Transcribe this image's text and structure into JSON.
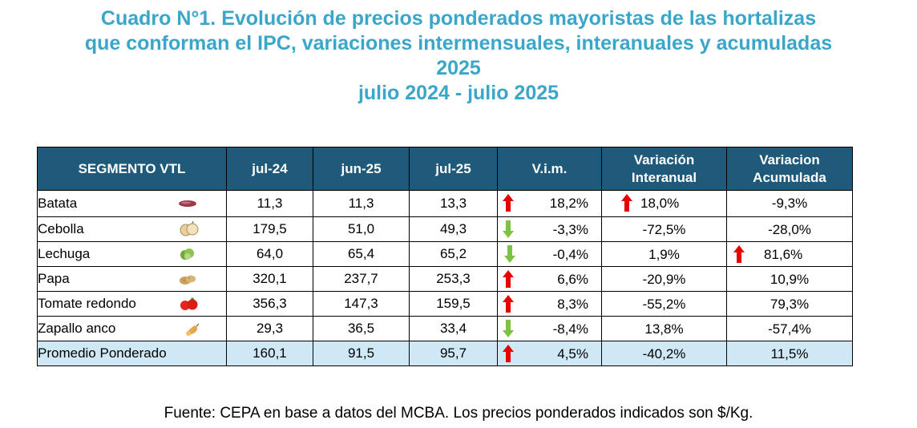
{
  "title": {
    "line1": "Cuadro N°1. Evolución de precios ponderados mayoristas de las hortalizas",
    "line2": "que conforman el IPC, variaciones intermensuales, interanuales y acumuladas",
    "line3": "2025",
    "line4": "julio 2024 - julio 2025"
  },
  "table": {
    "headers": {
      "segmento": "SEGMENTO VTL",
      "jul24": "jul-24",
      "jun25": "jun-25",
      "jul25": "jul-25",
      "vim": "V.i.m.",
      "interanual_1": "Variación",
      "interanual_2": "Interanual",
      "acumulada_1": "Variacion",
      "acumulada_2": "Acumulada"
    },
    "rows": [
      {
        "name": "Batata",
        "icon": "sweet-potato-icon",
        "jul24": "11,3",
        "jun25": "11,3",
        "jul25": "13,3",
        "vim": "18,2%",
        "vim_arrow": "up",
        "interanual": "18,0%",
        "interanual_arrow": "up",
        "acumulada": "-9,3%",
        "acumulada_arrow": ""
      },
      {
        "name": "Cebolla",
        "icon": "onion-icon",
        "jul24": "179,5",
        "jun25": "51,0",
        "jul25": "49,3",
        "vim": "-3,3%",
        "vim_arrow": "down",
        "interanual": "-72,5%",
        "interanual_arrow": "",
        "acumulada": "-28,0%",
        "acumulada_arrow": ""
      },
      {
        "name": "Lechuga",
        "icon": "lettuce-icon",
        "jul24": "64,0",
        "jun25": "65,4",
        "jul25": "65,2",
        "vim": "-0,4%",
        "vim_arrow": "down",
        "interanual": "1,9%",
        "interanual_arrow": "",
        "acumulada": "81,6%",
        "acumulada_arrow": "up"
      },
      {
        "name": "Papa",
        "icon": "potato-icon",
        "jul24": "320,1",
        "jun25": "237,7",
        "jul25": "253,3",
        "vim": "6,6%",
        "vim_arrow": "up",
        "interanual": "-20,9%",
        "interanual_arrow": "",
        "acumulada": "10,9%",
        "acumulada_arrow": ""
      },
      {
        "name": "Tomate redondo",
        "icon": "tomato-icon",
        "jul24": "356,3",
        "jun25": "147,3",
        "jul25": "159,5",
        "vim": "8,3%",
        "vim_arrow": "up",
        "interanual": "-55,2%",
        "interanual_arrow": "",
        "acumulada": "79,3%",
        "acumulada_arrow": ""
      },
      {
        "name": "Zapallo anco",
        "icon": "squash-icon",
        "jul24": "29,3",
        "jun25": "36,5",
        "jul25": "33,4",
        "vim": "-8,4%",
        "vim_arrow": "down",
        "interanual": "13,8%",
        "interanual_arrow": "",
        "acumulada": "-57,4%",
        "acumulada_arrow": ""
      }
    ],
    "average": {
      "name": "Promedio Ponderado",
      "jul24": "160,1",
      "jun25": "91,5",
      "jul25": "95,7",
      "vim": "4,5%",
      "vim_arrow": "up",
      "interanual": "-40,2%",
      "acumulada": "11,5%"
    }
  },
  "footer": "Fuente: CEPA en base a datos del MCBA. Los precios ponderados indicados son $/Kg.",
  "colors": {
    "title": "#3aa6c9",
    "header_bg": "#1f5a7a",
    "average_bg": "#cfe8f5",
    "arrow_up": "#e60000",
    "arrow_down": "#7dc242"
  }
}
